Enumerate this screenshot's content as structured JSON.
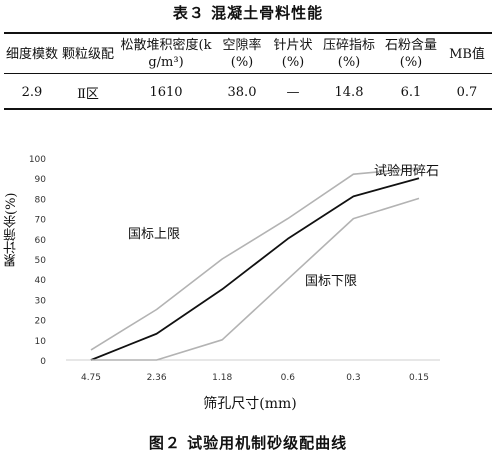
{
  "table": {
    "title": "表３  混凝土骨料性能",
    "headers": [
      "细度模数",
      "颗粒级配",
      "松散堆积密度(kg/m³)",
      "空隙率(%)",
      "针片状(%)",
      "压碎指标(%)",
      "石粉含量(%)",
      "MB值"
    ],
    "row": [
      "2.9",
      "Ⅱ区",
      "1610",
      "38.0",
      "—",
      "14.8",
      "6.1",
      "0.7"
    ]
  },
  "chart_data": {
    "type": "line",
    "xlabel": "筛孔尺寸(mm)",
    "ylabel": "累计筛余(%)",
    "categories": [
      "4.75",
      "2.36",
      "1.18",
      "0.6",
      "0.3",
      "0.15"
    ],
    "ylim": [
      0,
      100
    ],
    "yticks": [
      0,
      10,
      20,
      30,
      40,
      50,
      60,
      70,
      80,
      90,
      100
    ],
    "grid": false,
    "series": [
      {
        "name": "国标上限",
        "color": "#b3b3b3",
        "values": [
          5,
          25,
          50,
          70,
          92,
          95
        ]
      },
      {
        "name": "试验用碎石",
        "color": "#111111",
        "values": [
          0,
          13,
          35,
          60,
          81,
          90
        ]
      },
      {
        "name": "国标下限",
        "color": "#b3b3b3",
        "values": [
          0,
          0,
          10,
          40,
          70,
          80
        ]
      }
    ]
  },
  "figure": {
    "caption": "图２  试验用机制砂级配曲线"
  }
}
